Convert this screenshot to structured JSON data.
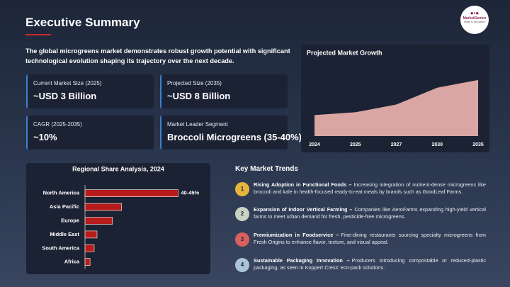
{
  "header": {
    "title": "Executive Summary",
    "logo_name": "MarketGenics",
    "logo_tagline": "Ideas to Innovation"
  },
  "summary": "The global microgreens market demonstrates robust growth potential with significant technological evolution shaping its trajectory over the next decade.",
  "cards": [
    {
      "label": "Current Market Size (2025)",
      "value": "~USD 3 Billion"
    },
    {
      "label": "Projected Size (2035)",
      "value": "~USD 8 Billion"
    },
    {
      "label": "CAGR (2025-2035)",
      "value": "~10%"
    },
    {
      "label": "Market Leader Segment",
      "value": "Broccoli Microgreens (35-40%)"
    }
  ],
  "chart_data": [
    {
      "type": "area",
      "title": "Projected Market Growth",
      "categories": [
        "2024",
        "2025",
        "2027",
        "2030",
        "2035"
      ],
      "values": [
        3,
        3.4,
        4.5,
        6.9,
        8
      ],
      "color": "#d9a6a4",
      "ylim": [
        0,
        9
      ]
    },
    {
      "type": "bar",
      "orientation": "horizontal",
      "title": "Regional Share Analysis, 2024",
      "categories": [
        "North America",
        "Asia Pacific",
        "Europe",
        "Middle East",
        "South America",
        "Africa"
      ],
      "values": [
        42.5,
        16.7,
        12.5,
        5.5,
        4.2,
        2.3
      ],
      "value_labels": [
        "40-45%",
        null,
        null,
        null,
        null,
        null
      ],
      "color": "#b71c1c",
      "xlim": [
        0,
        55
      ]
    }
  ],
  "trends": {
    "title": "Key Market Trends",
    "items": [
      {
        "number": "1",
        "title": "Rising Adoption in Functional Foods –",
        "text": "Increasing integration of nutrient-dense microgreens like broccoli and kale in health-focused ready-to-eat meals by brands such as GoodLeaf Farms.",
        "color": "#e8b53c"
      },
      {
        "number": "2",
        "title": "Expansion of Indoor Vertical Farming –",
        "text": "Companies like AeroFarms expanding high-yield vertical farms to meet urban demand for fresh, pesticide-free microgreens.",
        "color": "#c9d3c4"
      },
      {
        "number": "3",
        "title": "Premiumization in Foodservice –",
        "text": "Fine-dining restaurants sourcing specialty microgreens from Fresh Origins to enhance flavor, texture, and visual appeal.",
        "color": "#d9605e"
      },
      {
        "number": "4",
        "title": "Sustainable Packaging Innovation –",
        "text": "Producers introducing compostable or reduced-plastic packaging, as seen in Koppert Cress' eco-pack solutions.",
        "color": "#a9c4d8"
      }
    ]
  }
}
